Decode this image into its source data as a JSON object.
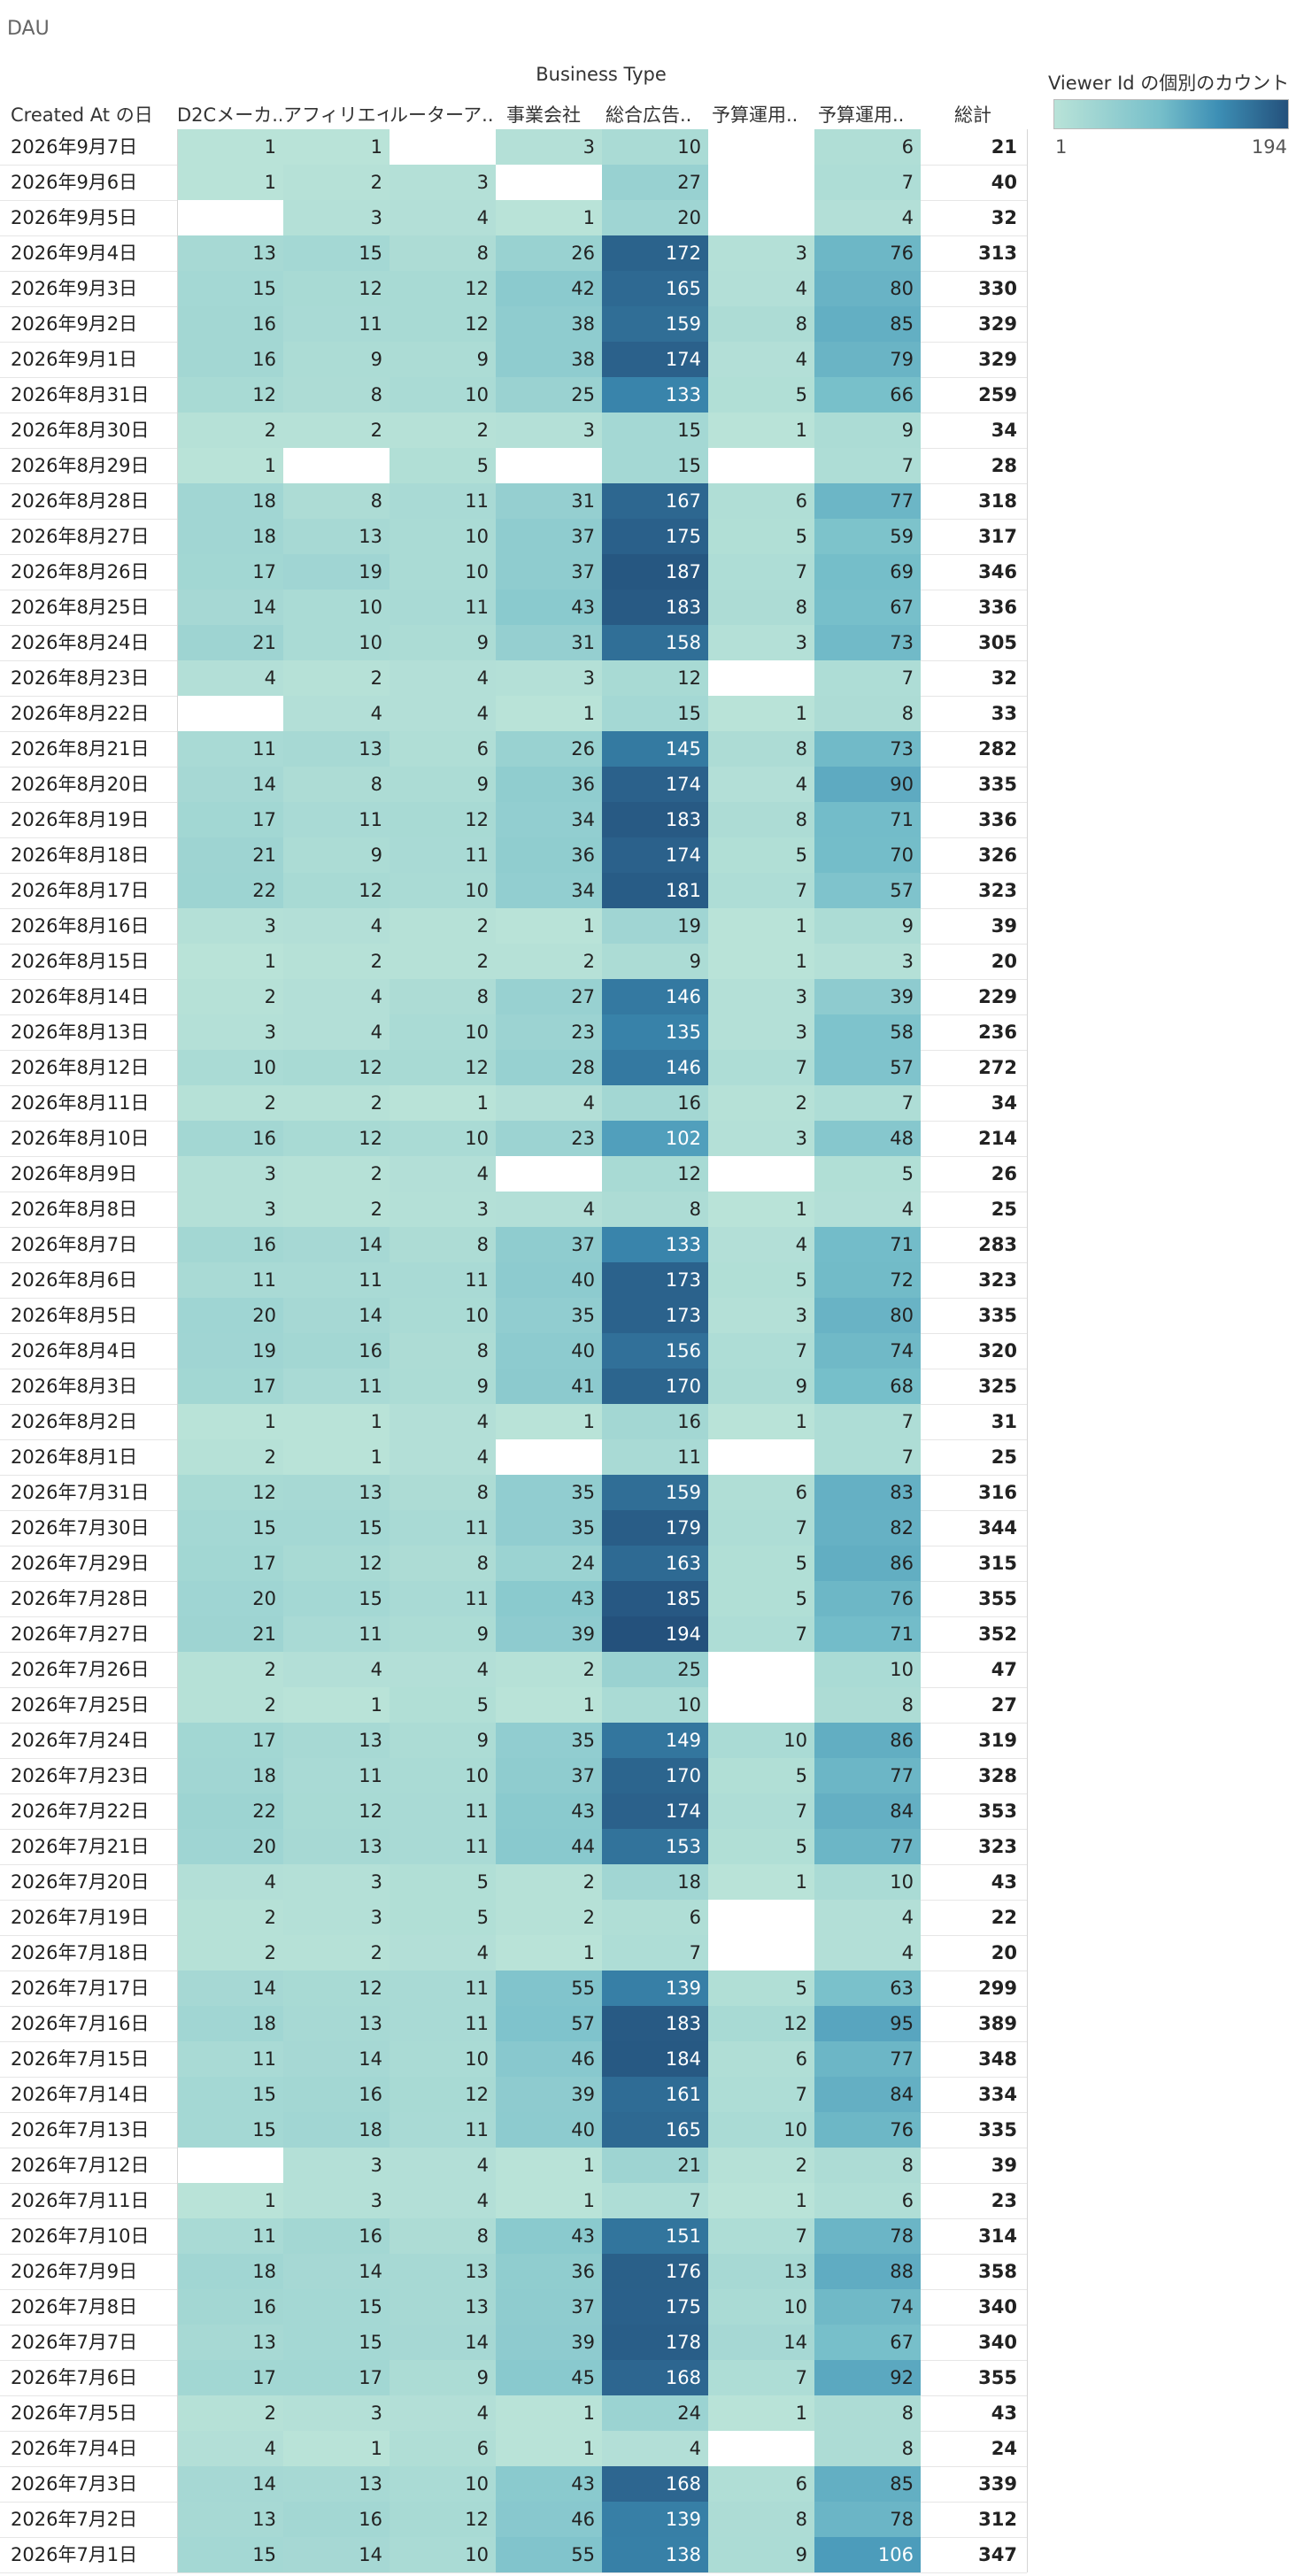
{
  "title": "DAU",
  "chart_data": {
    "type": "heatmap",
    "column_group_label": "Business Type",
    "row_header": "Created At の日",
    "columns": [
      "D2Cメーカ..",
      "アフィリエイト",
      "ルーターア..",
      "事業会社",
      "総合広告..",
      "予算運用..",
      "予算運用.."
    ],
    "total_label": "総計",
    "legend": {
      "title": "Viewer Id の個別のカウント",
      "min": 1,
      "max": 194,
      "min_label": "1",
      "max_label": "194",
      "color_low": "#b9e3d8",
      "color_high": "#24517c"
    },
    "rows": [
      {
        "date": "2026年9月7日",
        "values": [
          1,
          1,
          null,
          3,
          10,
          null,
          6
        ],
        "total": 21
      },
      {
        "date": "2026年9月6日",
        "values": [
          1,
          2,
          3,
          null,
          27,
          null,
          7
        ],
        "total": 40
      },
      {
        "date": "2026年9月5日",
        "values": [
          null,
          3,
          4,
          1,
          20,
          null,
          4
        ],
        "total": 32
      },
      {
        "date": "2026年9月4日",
        "values": [
          13,
          15,
          8,
          26,
          172,
          3,
          76
        ],
        "total": 313
      },
      {
        "date": "2026年9月3日",
        "values": [
          15,
          12,
          12,
          42,
          165,
          4,
          80
        ],
        "total": 330
      },
      {
        "date": "2026年9月2日",
        "values": [
          16,
          11,
          12,
          38,
          159,
          8,
          85
        ],
        "total": 329
      },
      {
        "date": "2026年9月1日",
        "values": [
          16,
          9,
          9,
          38,
          174,
          4,
          79
        ],
        "total": 329
      },
      {
        "date": "2026年8月31日",
        "values": [
          12,
          8,
          10,
          25,
          133,
          5,
          66
        ],
        "total": 259
      },
      {
        "date": "2026年8月30日",
        "values": [
          2,
          2,
          2,
          3,
          15,
          1,
          9
        ],
        "total": 34
      },
      {
        "date": "2026年8月29日",
        "values": [
          1,
          null,
          5,
          null,
          15,
          null,
          7
        ],
        "total": 28
      },
      {
        "date": "2026年8月28日",
        "values": [
          18,
          8,
          11,
          31,
          167,
          6,
          77
        ],
        "total": 318
      },
      {
        "date": "2026年8月27日",
        "values": [
          18,
          13,
          10,
          37,
          175,
          5,
          59
        ],
        "total": 317
      },
      {
        "date": "2026年8月26日",
        "values": [
          17,
          19,
          10,
          37,
          187,
          7,
          69
        ],
        "total": 346
      },
      {
        "date": "2026年8月25日",
        "values": [
          14,
          10,
          11,
          43,
          183,
          8,
          67
        ],
        "total": 336
      },
      {
        "date": "2026年8月24日",
        "values": [
          21,
          10,
          9,
          31,
          158,
          3,
          73
        ],
        "total": 305
      },
      {
        "date": "2026年8月23日",
        "values": [
          4,
          2,
          4,
          3,
          12,
          null,
          7
        ],
        "total": 32
      },
      {
        "date": "2026年8月22日",
        "values": [
          null,
          4,
          4,
          1,
          15,
          1,
          8
        ],
        "total": 33
      },
      {
        "date": "2026年8月21日",
        "values": [
          11,
          13,
          6,
          26,
          145,
          8,
          73
        ],
        "total": 282
      },
      {
        "date": "2026年8月20日",
        "values": [
          14,
          8,
          9,
          36,
          174,
          4,
          90
        ],
        "total": 335
      },
      {
        "date": "2026年8月19日",
        "values": [
          17,
          11,
          12,
          34,
          183,
          8,
          71
        ],
        "total": 336
      },
      {
        "date": "2026年8月18日",
        "values": [
          21,
          9,
          11,
          36,
          174,
          5,
          70
        ],
        "total": 326
      },
      {
        "date": "2026年8月17日",
        "values": [
          22,
          12,
          10,
          34,
          181,
          7,
          57
        ],
        "total": 323
      },
      {
        "date": "2026年8月16日",
        "values": [
          3,
          4,
          2,
          1,
          19,
          1,
          9
        ],
        "total": 39
      },
      {
        "date": "2026年8月15日",
        "values": [
          1,
          2,
          2,
          2,
          9,
          1,
          3
        ],
        "total": 20
      },
      {
        "date": "2026年8月14日",
        "values": [
          2,
          4,
          8,
          27,
          146,
          3,
          39
        ],
        "total": 229
      },
      {
        "date": "2026年8月13日",
        "values": [
          3,
          4,
          10,
          23,
          135,
          3,
          58
        ],
        "total": 236
      },
      {
        "date": "2026年8月12日",
        "values": [
          10,
          12,
          12,
          28,
          146,
          7,
          57
        ],
        "total": 272
      },
      {
        "date": "2026年8月11日",
        "values": [
          2,
          2,
          1,
          4,
          16,
          2,
          7
        ],
        "total": 34
      },
      {
        "date": "2026年8月10日",
        "values": [
          16,
          12,
          10,
          23,
          102,
          3,
          48
        ],
        "total": 214
      },
      {
        "date": "2026年8月9日",
        "values": [
          3,
          2,
          4,
          null,
          12,
          null,
          5
        ],
        "total": 26
      },
      {
        "date": "2026年8月8日",
        "values": [
          3,
          2,
          3,
          4,
          8,
          1,
          4
        ],
        "total": 25
      },
      {
        "date": "2026年8月7日",
        "values": [
          16,
          14,
          8,
          37,
          133,
          4,
          71
        ],
        "total": 283
      },
      {
        "date": "2026年8月6日",
        "values": [
          11,
          11,
          11,
          40,
          173,
          5,
          72
        ],
        "total": 323
      },
      {
        "date": "2026年8月5日",
        "values": [
          20,
          14,
          10,
          35,
          173,
          3,
          80
        ],
        "total": 335
      },
      {
        "date": "2026年8月4日",
        "values": [
          19,
          16,
          8,
          40,
          156,
          7,
          74
        ],
        "total": 320
      },
      {
        "date": "2026年8月3日",
        "values": [
          17,
          11,
          9,
          41,
          170,
          9,
          68
        ],
        "total": 325
      },
      {
        "date": "2026年8月2日",
        "values": [
          1,
          1,
          4,
          1,
          16,
          1,
          7
        ],
        "total": 31
      },
      {
        "date": "2026年8月1日",
        "values": [
          2,
          1,
          4,
          null,
          11,
          null,
          7
        ],
        "total": 25
      },
      {
        "date": "2026年7月31日",
        "values": [
          12,
          13,
          8,
          35,
          159,
          6,
          83
        ],
        "total": 316
      },
      {
        "date": "2026年7月30日",
        "values": [
          15,
          15,
          11,
          35,
          179,
          7,
          82
        ],
        "total": 344
      },
      {
        "date": "2026年7月29日",
        "values": [
          17,
          12,
          8,
          24,
          163,
          5,
          86
        ],
        "total": 315
      },
      {
        "date": "2026年7月28日",
        "values": [
          20,
          15,
          11,
          43,
          185,
          5,
          76
        ],
        "total": 355
      },
      {
        "date": "2026年7月27日",
        "values": [
          21,
          11,
          9,
          39,
          194,
          7,
          71
        ],
        "total": 352
      },
      {
        "date": "2026年7月26日",
        "values": [
          2,
          4,
          4,
          2,
          25,
          null,
          10
        ],
        "total": 47
      },
      {
        "date": "2026年7月25日",
        "values": [
          2,
          1,
          5,
          1,
          10,
          null,
          8
        ],
        "total": 27
      },
      {
        "date": "2026年7月24日",
        "values": [
          17,
          13,
          9,
          35,
          149,
          10,
          86
        ],
        "total": 319
      },
      {
        "date": "2026年7月23日",
        "values": [
          18,
          11,
          10,
          37,
          170,
          5,
          77
        ],
        "total": 328
      },
      {
        "date": "2026年7月22日",
        "values": [
          22,
          12,
          11,
          43,
          174,
          7,
          84
        ],
        "total": 353
      },
      {
        "date": "2026年7月21日",
        "values": [
          20,
          13,
          11,
          44,
          153,
          5,
          77
        ],
        "total": 323
      },
      {
        "date": "2026年7月20日",
        "values": [
          4,
          3,
          5,
          2,
          18,
          1,
          10
        ],
        "total": 43
      },
      {
        "date": "2026年7月19日",
        "values": [
          2,
          3,
          5,
          2,
          6,
          null,
          4
        ],
        "total": 22
      },
      {
        "date": "2026年7月18日",
        "values": [
          2,
          2,
          4,
          1,
          7,
          null,
          4
        ],
        "total": 20
      },
      {
        "date": "2026年7月17日",
        "values": [
          14,
          12,
          11,
          55,
          139,
          5,
          63
        ],
        "total": 299
      },
      {
        "date": "2026年7月16日",
        "values": [
          18,
          13,
          11,
          57,
          183,
          12,
          95
        ],
        "total": 389
      },
      {
        "date": "2026年7月15日",
        "values": [
          11,
          14,
          10,
          46,
          184,
          6,
          77
        ],
        "total": 348
      },
      {
        "date": "2026年7月14日",
        "values": [
          15,
          16,
          12,
          39,
          161,
          7,
          84
        ],
        "total": 334
      },
      {
        "date": "2026年7月13日",
        "values": [
          15,
          18,
          11,
          40,
          165,
          10,
          76
        ],
        "total": 335
      },
      {
        "date": "2026年7月12日",
        "values": [
          null,
          3,
          4,
          1,
          21,
          2,
          8
        ],
        "total": 39
      },
      {
        "date": "2026年7月11日",
        "values": [
          1,
          3,
          4,
          1,
          7,
          1,
          6
        ],
        "total": 23
      },
      {
        "date": "2026年7月10日",
        "values": [
          11,
          16,
          8,
          43,
          151,
          7,
          78
        ],
        "total": 314
      },
      {
        "date": "2026年7月9日",
        "values": [
          18,
          14,
          13,
          36,
          176,
          13,
          88
        ],
        "total": 358
      },
      {
        "date": "2026年7月8日",
        "values": [
          16,
          15,
          13,
          37,
          175,
          10,
          74
        ],
        "total": 340
      },
      {
        "date": "2026年7月7日",
        "values": [
          13,
          15,
          14,
          39,
          178,
          14,
          67
        ],
        "total": 340
      },
      {
        "date": "2026年7月6日",
        "values": [
          17,
          17,
          9,
          45,
          168,
          7,
          92
        ],
        "total": 355
      },
      {
        "date": "2026年7月5日",
        "values": [
          2,
          3,
          4,
          1,
          24,
          1,
          8
        ],
        "total": 43
      },
      {
        "date": "2026年7月4日",
        "values": [
          4,
          1,
          6,
          1,
          4,
          null,
          8
        ],
        "total": 24
      },
      {
        "date": "2026年7月3日",
        "values": [
          14,
          13,
          10,
          43,
          168,
          6,
          85
        ],
        "total": 339
      },
      {
        "date": "2026年7月2日",
        "values": [
          13,
          16,
          12,
          46,
          139,
          8,
          78
        ],
        "total": 312
      },
      {
        "date": "2026年7月1日",
        "values": [
          15,
          14,
          10,
          55,
          138,
          9,
          106
        ],
        "total": 347
      }
    ]
  }
}
